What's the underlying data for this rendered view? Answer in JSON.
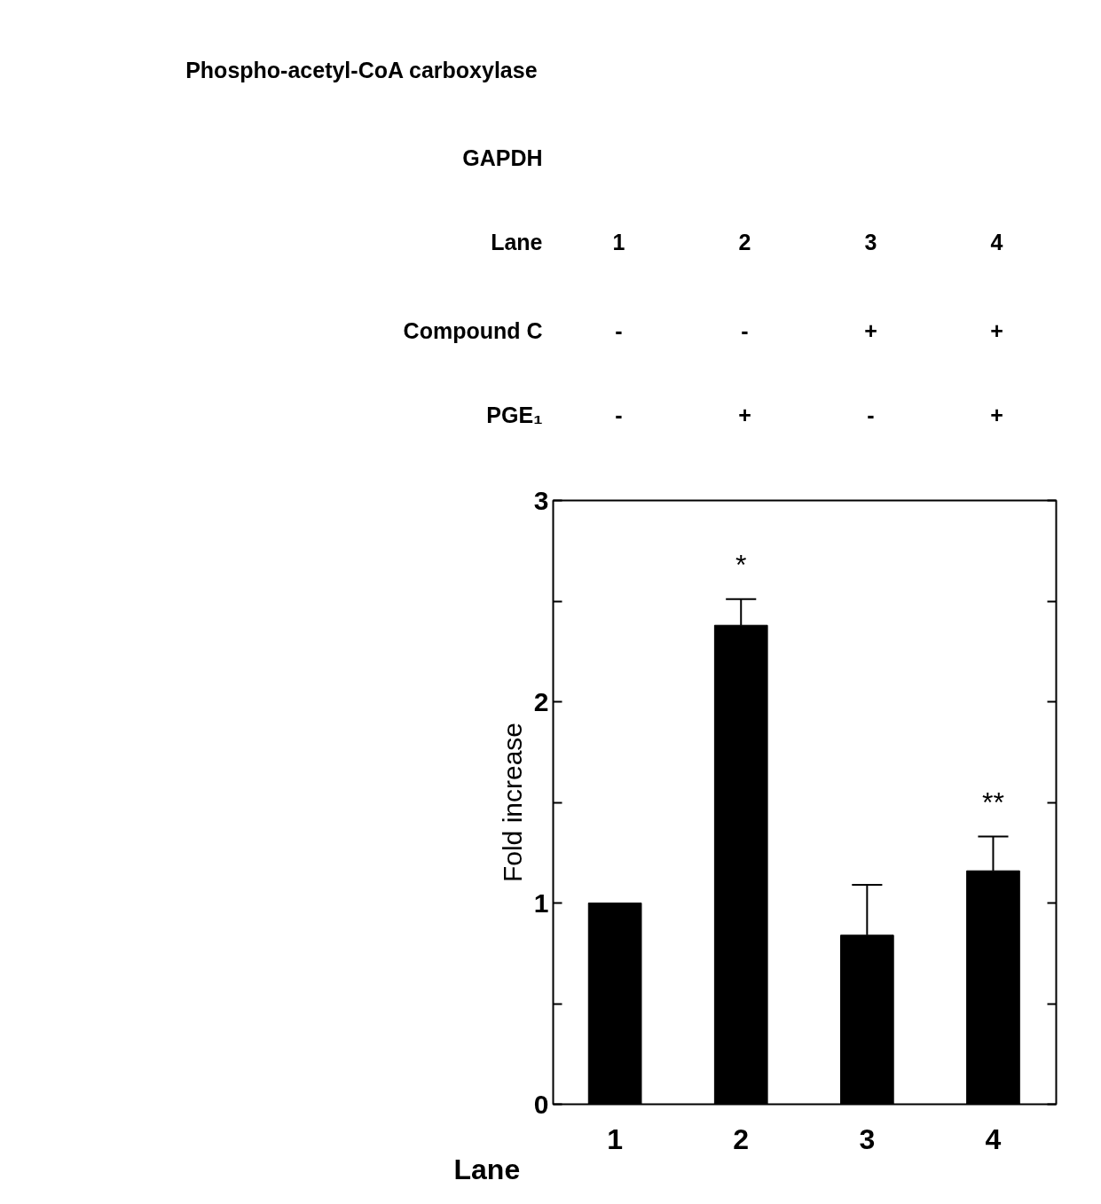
{
  "chart_data": {
    "type": "bar",
    "categories": [
      "1",
      "2",
      "3",
      "4"
    ],
    "values": [
      1.0,
      2.38,
      0.84,
      1.16
    ],
    "errors": [
      null,
      [
        2.38,
        2.51
      ],
      [
        0.84,
        1.09
      ],
      [
        1.16,
        1.33
      ]
    ],
    "color": "#000000",
    "xlabel": "Lane",
    "ylabel": "Fold increase",
    "ylim": [
      0,
      3
    ],
    "yticks": [
      0,
      {
        "value": 0.5,
        "label": null
      },
      1,
      {
        "value": 1.5,
        "label": null
      },
      2,
      {
        "value": 2.5,
        "label": null
      },
      3
    ],
    "grid": false,
    "annotations": [
      "Phospho-acetyl-CoA carboxylase",
      "GAPDH",
      "Lane",
      "1",
      "2",
      "3",
      "4",
      "Compound C",
      "-",
      "-",
      "+",
      "+",
      "PGE₁",
      "-",
      "+",
      "-",
      "+",
      "*",
      "**"
    ]
  }
}
